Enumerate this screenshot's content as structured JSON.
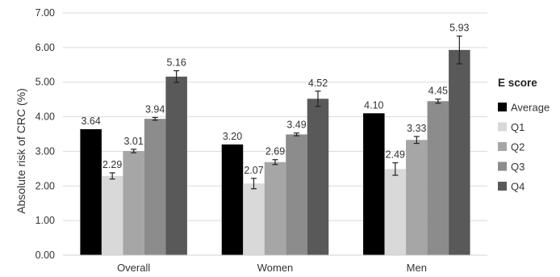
{
  "chart_data": {
    "type": "bar",
    "categories": [
      "Overall",
      "Women",
      "Men"
    ],
    "series": [
      {
        "name": "Average",
        "color": "#000000",
        "values": [
          3.64,
          3.2,
          4.1
        ],
        "errors": [
          null,
          null,
          null
        ]
      },
      {
        "name": "Q1",
        "color": "#d9d9d9",
        "values": [
          2.29,
          2.07,
          2.49
        ],
        "errors": [
          0.09,
          0.15,
          0.18
        ]
      },
      {
        "name": "Q2",
        "color": "#a6a6a6",
        "values": [
          3.01,
          2.69,
          3.33
        ],
        "errors": [
          0.05,
          0.07,
          0.1
        ]
      },
      {
        "name": "Q3",
        "color": "#8c8c8c",
        "values": [
          3.94,
          3.49,
          4.45
        ],
        "errors": [
          0.04,
          0.04,
          0.06
        ]
      },
      {
        "name": "Q4",
        "color": "#595959",
        "values": [
          5.16,
          4.52,
          5.93
        ],
        "errors": [
          0.17,
          0.22,
          0.4
        ]
      }
    ],
    "data_labels": [
      [
        "3.64",
        "3.20",
        "4.10"
      ],
      [
        "2.29",
        "2.07",
        "2.49"
      ],
      [
        "3.01",
        "2.69",
        "3.33"
      ],
      [
        "3.94",
        "3.49",
        "4.45"
      ],
      [
        "5.16",
        "4.52",
        "5.93"
      ]
    ],
    "ylabel": "Absolute risk of CRC (%)",
    "ylim": [
      0,
      7
    ],
    "yticks": [
      "0.00",
      "1.00",
      "2.00",
      "3.00",
      "4.00",
      "5.00",
      "6.00",
      "7.00"
    ],
    "legend_title": "E score",
    "legend_position": "right",
    "grid": true,
    "error_bars": true
  }
}
